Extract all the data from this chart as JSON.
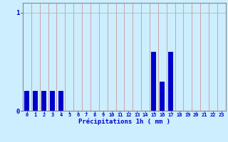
{
  "hours": [
    0,
    1,
    2,
    3,
    4,
    5,
    6,
    7,
    8,
    9,
    10,
    11,
    12,
    13,
    14,
    15,
    16,
    17,
    18,
    19,
    20,
    21,
    22,
    23
  ],
  "values": [
    0.2,
    0.2,
    0.2,
    0.2,
    0.2,
    0.0,
    0.0,
    0.0,
    0.0,
    0.0,
    0.0,
    0.0,
    0.0,
    0.0,
    0.0,
    0.6,
    0.3,
    0.6,
    0.0,
    0.0,
    0.0,
    0.0,
    0.0,
    0.0
  ],
  "bar_color": "#0000cc",
  "bg_color": "#cceeff",
  "vgrid_color": "#cc9999",
  "hgrid_color": "#aabbbb",
  "xlabel": "Précipitations 1h ( mm )",
  "xlabel_color": "#0000cc",
  "tick_color": "#0000cc",
  "axis_color": "#888888",
  "ylim": [
    0,
    1.1
  ],
  "yticks": [
    0,
    1
  ],
  "bar_width": 0.6
}
